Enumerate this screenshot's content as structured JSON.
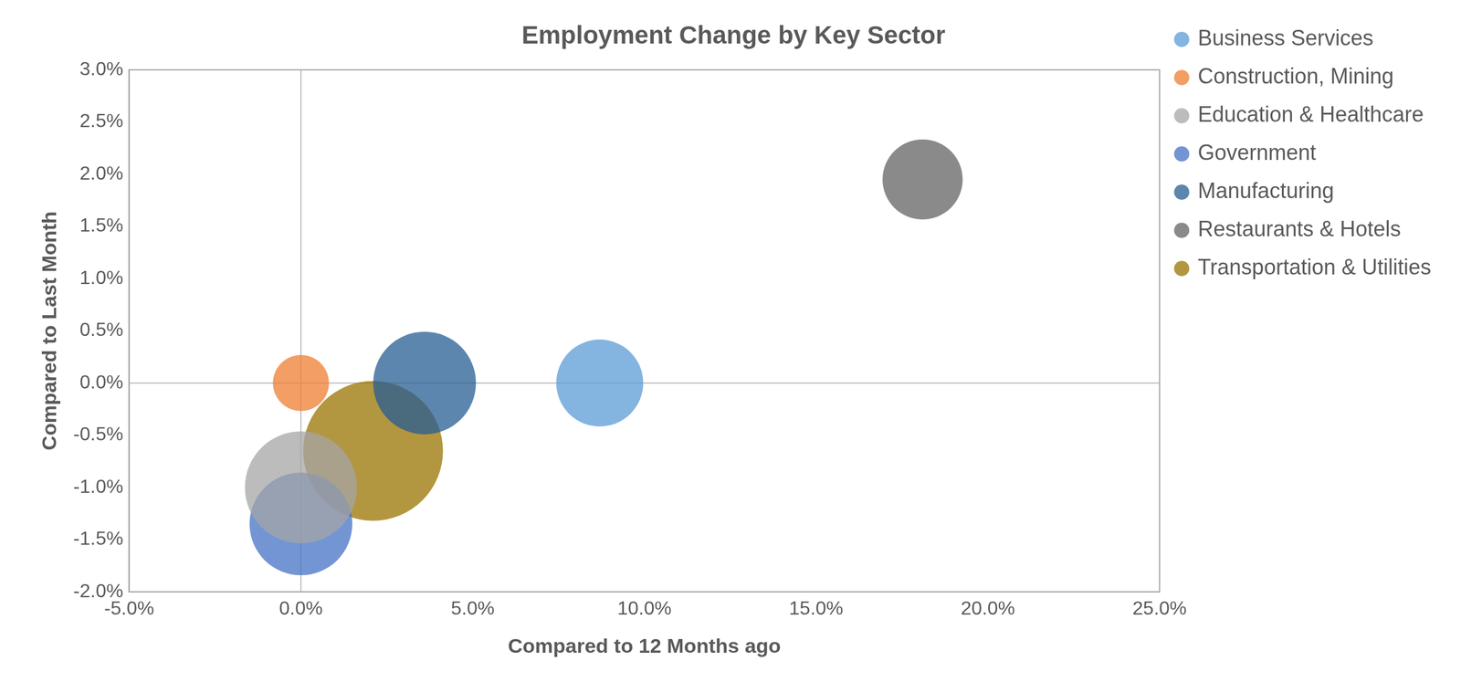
{
  "chart_data": {
    "type": "bubble",
    "title": "Employment Change by Key Sector",
    "x_label": "Compared to 12 Months ago",
    "y_label": "Compared to Last Month",
    "xlim": [
      -5,
      25
    ],
    "xticks": [
      {
        "value": -5,
        "label": "-5.0%"
      },
      {
        "value": 0,
        "label": "0.0%"
      },
      {
        "value": 5,
        "label": "5.0%"
      },
      {
        "value": 10,
        "label": "10.0%"
      },
      {
        "value": 15,
        "label": "15.0%"
      },
      {
        "value": 20,
        "label": "20.0%"
      },
      {
        "value": 25,
        "label": "25.0%"
      }
    ],
    "ylim": [
      -2,
      3
    ],
    "yticks": [
      {
        "value": -2,
        "label": "-2.0%"
      },
      {
        "value": -1.5,
        "label": "-1.5%"
      },
      {
        "value": -1,
        "label": "-1.0%"
      },
      {
        "value": -0.5,
        "label": "-0.5%"
      },
      {
        "value": 0,
        "label": "0.0%"
      },
      {
        "value": 0.5,
        "label": "0.5%"
      },
      {
        "value": 1,
        "label": "1.0%"
      },
      {
        "value": 1.5,
        "label": "1.5%"
      },
      {
        "value": 2,
        "label": "2.0%"
      },
      {
        "value": 2.5,
        "label": "2.5%"
      },
      {
        "value": 3,
        "label": "3.0%"
      }
    ],
    "grid": false,
    "legend": "right",
    "series": [
      {
        "name": "Business Services",
        "color": "#5b9bd5",
        "x": [
          8.7
        ],
        "values": [
          0.0
        ],
        "size": [
          53
        ]
      },
      {
        "name": "Construction, Mining",
        "color": "#ed7d31",
        "x": [
          0.0
        ],
        "values": [
          0.0
        ],
        "size": [
          22
        ]
      },
      {
        "name": "Education & Healthcare",
        "color": "#a5a5a5",
        "x": [
          0.0
        ],
        "values": [
          -1.0
        ],
        "size": [
          88
        ]
      },
      {
        "name": "Government",
        "color": "#4472c4",
        "x": [
          0.0
        ],
        "values": [
          -1.35
        ],
        "size": [
          74
        ]
      },
      {
        "name": "Manufacturing",
        "color": "#255e91",
        "x": [
          3.6
        ],
        "values": [
          0.0
        ],
        "size": [
          74
        ]
      },
      {
        "name": "Restaurants & Hotels",
        "color": "#636363",
        "x": [
          18.1
        ],
        "values": [
          1.95
        ],
        "size": [
          45
        ]
      },
      {
        "name": "Transportation & Utilities",
        "color": "#997300",
        "x": [
          2.1
        ],
        "values": [
          -0.65
        ],
        "size": [
          137
        ]
      }
    ]
  }
}
